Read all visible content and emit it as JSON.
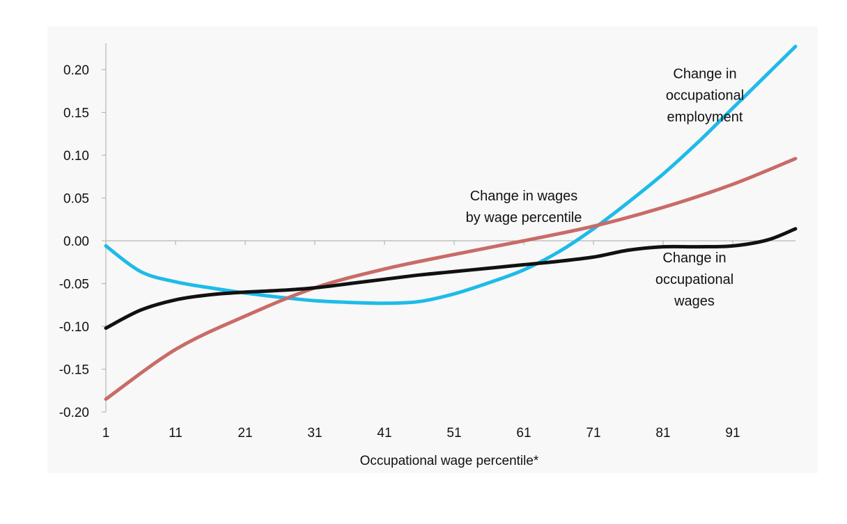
{
  "chart_data": {
    "type": "line",
    "title": "",
    "xlabel": "Occupational wage percentile*",
    "ylabel": "",
    "xlim": [
      1,
      100
    ],
    "ylim": [
      -0.2,
      0.2
    ],
    "x_ticks": [
      "1",
      "11",
      "21",
      "31",
      "41",
      "51",
      "61",
      "71",
      "81",
      "91"
    ],
    "y_ticks": [
      "0.20",
      "0.15",
      "0.10",
      "0.05",
      "0.00",
      "-0.05",
      "-0.10",
      "-0.15",
      "-0.20"
    ],
    "grid": false,
    "legend": "none",
    "series": [
      {
        "color": "#1ebbe8",
        "x": [
          1,
          6,
          11,
          16,
          21,
          26,
          31,
          36,
          41,
          46,
          51,
          56,
          61,
          66,
          71,
          76,
          81,
          86,
          91,
          96,
          100
        ],
        "y": [
          -0.006,
          -0.036,
          -0.048,
          -0.055,
          -0.061,
          -0.066,
          -0.07,
          -0.072,
          -0.073,
          -0.071,
          -0.062,
          -0.049,
          -0.034,
          -0.013,
          0.014,
          0.045,
          0.078,
          0.115,
          0.155,
          0.195,
          0.227
        ]
      },
      {
        "color": "#c96b68",
        "x": [
          1,
          11,
          21,
          31,
          41,
          51,
          61,
          71,
          81,
          91,
          100
        ],
        "y": [
          -0.185,
          -0.127,
          -0.088,
          -0.055,
          -0.033,
          -0.016,
          0.0,
          0.017,
          0.039,
          0.066,
          0.096
        ]
      },
      {
        "color": "#111111",
        "x": [
          1,
          6,
          11,
          16,
          21,
          26,
          31,
          36,
          41,
          46,
          51,
          56,
          61,
          66,
          71,
          76,
          81,
          86,
          91,
          96,
          100
        ],
        "y": [
          -0.102,
          -0.081,
          -0.069,
          -0.063,
          -0.06,
          -0.058,
          -0.055,
          -0.05,
          -0.045,
          -0.04,
          -0.036,
          -0.032,
          -0.028,
          -0.024,
          -0.019,
          -0.011,
          -0.007,
          -0.007,
          -0.006,
          0.001,
          0.014
        ]
      }
    ],
    "annotations": [
      {
        "lines": [
          "Change in",
          "occupational",
          "employment"
        ],
        "anchor": [
          87,
          0.19
        ],
        "color": "#111111"
      },
      {
        "lines": [
          "Change in wages",
          "by wage percentile"
        ],
        "anchor": [
          61,
          0.047
        ],
        "color": "#111111"
      },
      {
        "lines": [
          "Change in",
          "occupational",
          "wages"
        ],
        "anchor": [
          85.5,
          -0.025
        ],
        "color": "#111111"
      }
    ]
  }
}
